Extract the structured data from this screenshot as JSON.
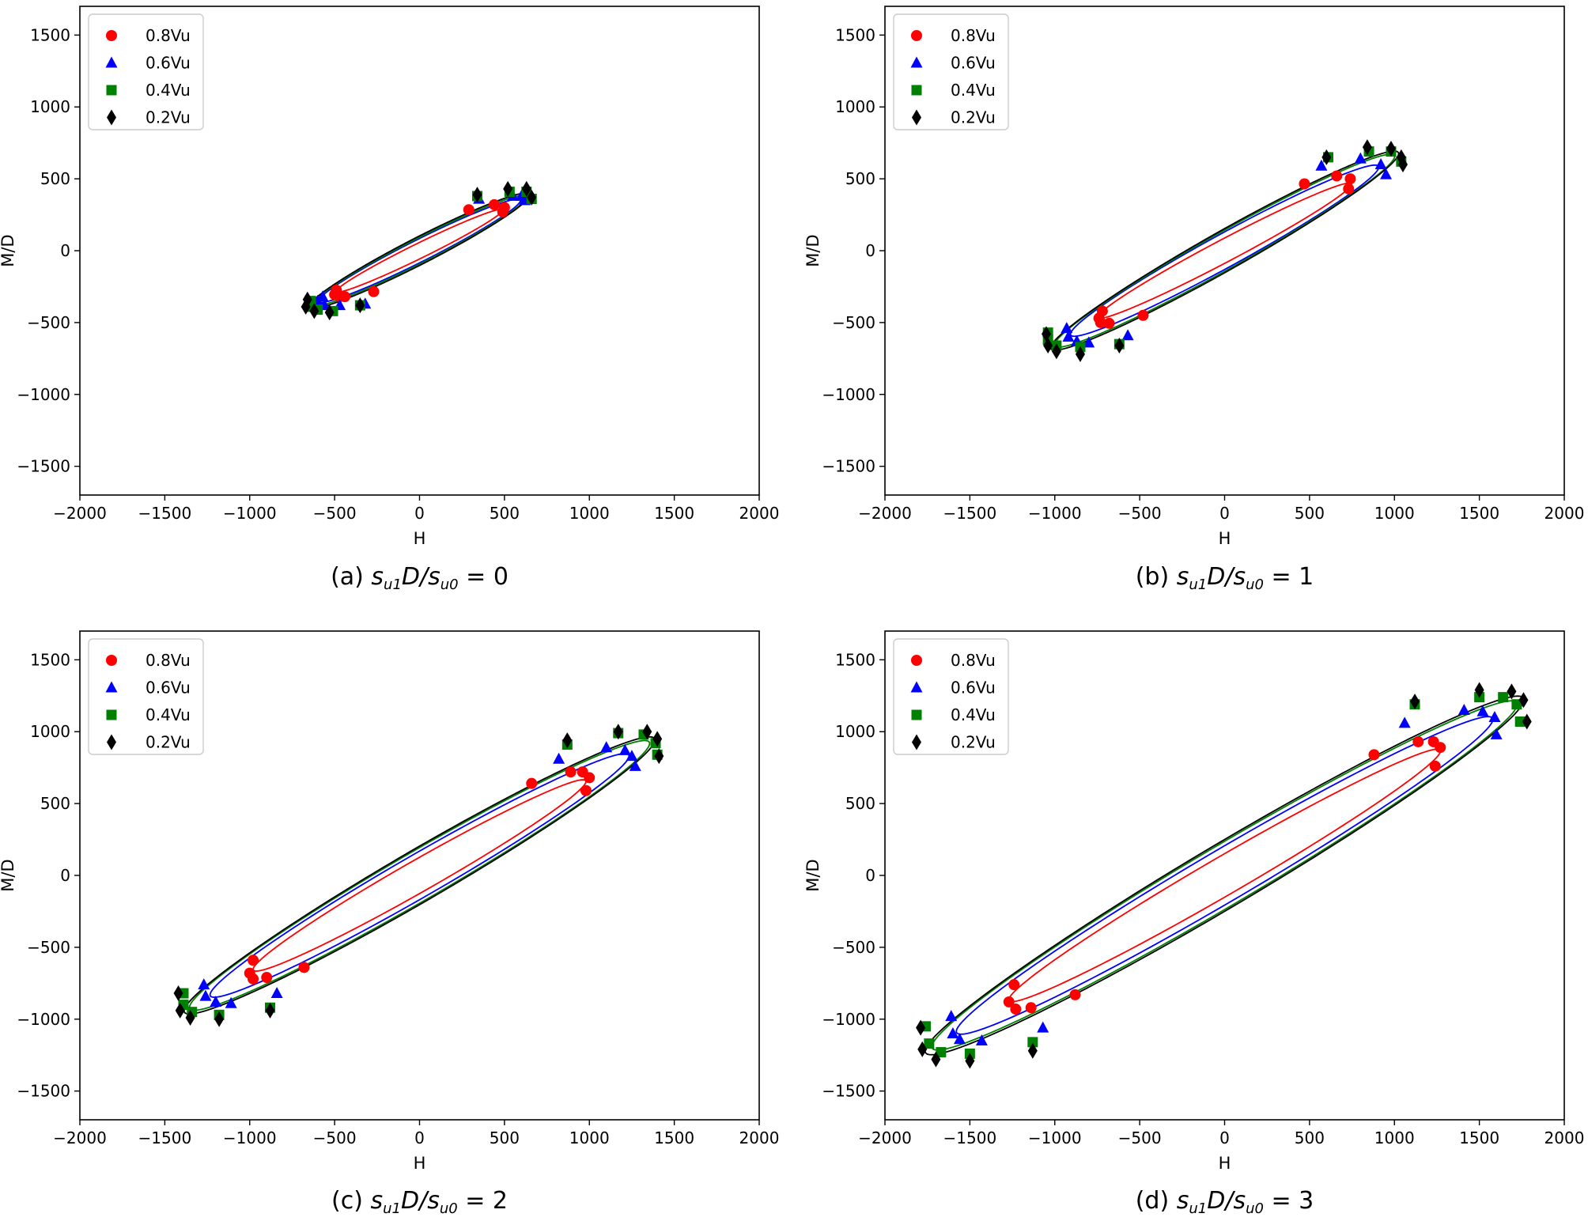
{
  "colors": {
    "0.8Vu": "#ff0000",
    "0.6Vu": "#0000ff",
    "0.4Vu": "#008000",
    "0.2Vu": "#000000",
    "axes": "#000000",
    "background": "#ffffff"
  },
  "legend_markers": {
    "0.8Vu": "circle",
    "0.6Vu": "triangle",
    "0.4Vu": "square",
    "0.2Vu": "diamond"
  },
  "chart_data": [
    {
      "type": "scatter",
      "caption": {
        "prefix": "(a)",
        "expression": "s_u1 D / s_u0",
        "rhs": "= 0"
      },
      "xlabel": "H",
      "ylabel": "M/D",
      "xlim": [
        -2000,
        2000
      ],
      "ylim": [
        -1700,
        1700
      ],
      "xticks": [
        -2000,
        -1500,
        -1000,
        -500,
        0,
        500,
        1000,
        1500,
        2000
      ],
      "yticks": [
        -1500,
        -1000,
        -500,
        0,
        500,
        1000,
        1500
      ],
      "xtick_labels": [
        "−2000",
        "−1500",
        "−1000",
        "−500",
        "0",
        "500",
        "1000",
        "1500",
        "2000"
      ],
      "ytick_labels": [
        "−1500",
        "−1000",
        "−500",
        "0",
        "500",
        "1000",
        "1500"
      ],
      "legend_position": "upper-left",
      "series": [
        {
          "name": "0.8Vu",
          "ellipse": {
            "cx": 0,
            "cy": 0,
            "a": 565,
            "b": 50,
            "angle_deg": 30.2
          },
          "points": [
            [
              -270,
              -285
            ],
            [
              -490,
              -275
            ],
            [
              -500,
              -305
            ],
            [
              -440,
              -320
            ],
            [
              -470,
              -320
            ],
            [
              290,
              285
            ],
            [
              440,
              320
            ],
            [
              500,
              300
            ],
            [
              490,
              270
            ]
          ]
        },
        {
          "name": "0.6Vu",
          "ellipse": {
            "cx": 0,
            "cy": 0,
            "a": 690,
            "b": 73,
            "angle_deg": 30.8
          },
          "points": [
            [
              -570,
              -320
            ],
            [
              -600,
              -350
            ],
            [
              -560,
              -380
            ],
            [
              -470,
              -380
            ],
            [
              -320,
              -370
            ],
            [
              350,
              360
            ],
            [
              550,
              380
            ],
            [
              600,
              380
            ],
            [
              620,
              350
            ]
          ]
        },
        {
          "name": "0.4Vu",
          "ellipse": {
            "cx": 0,
            "cy": 0,
            "a": 735,
            "b": 80,
            "angle_deg": 31.0
          },
          "points": [
            [
              -640,
              -350
            ],
            [
              -650,
              -390
            ],
            [
              -600,
              -410
            ],
            [
              -510,
              -420
            ],
            [
              -350,
              -380
            ],
            [
              340,
              380
            ],
            [
              530,
              410
            ],
            [
              630,
              410
            ],
            [
              660,
              360
            ]
          ]
        },
        {
          "name": "0.2Vu",
          "ellipse": {
            "cx": 0,
            "cy": 0,
            "a": 760,
            "b": 88,
            "angle_deg": 31.3
          },
          "points": [
            [
              -660,
              -340
            ],
            [
              -670,
              -390
            ],
            [
              -620,
              -420
            ],
            [
              -530,
              -430
            ],
            [
              -350,
              -380
            ],
            [
              340,
              390
            ],
            [
              520,
              430
            ],
            [
              630,
              430
            ],
            [
              660,
              370
            ]
          ]
        }
      ]
    },
    {
      "type": "scatter",
      "caption": {
        "prefix": "(b)",
        "expression": "s_u1 D / s_u0",
        "rhs": "= 1"
      },
      "xlabel": "H",
      "ylabel": "M/D",
      "xlim": [
        -2000,
        2000
      ],
      "ylim": [
        -1700,
        1700
      ],
      "xticks": [
        -2000,
        -1500,
        -1000,
        -500,
        0,
        500,
        1000,
        1500,
        2000
      ],
      "yticks": [
        -1500,
        -1000,
        -500,
        0,
        500,
        1000,
        1500
      ],
      "xtick_labels": [
        "−2000",
        "−1500",
        "−1000",
        "−500",
        "0",
        "500",
        "1000",
        "1500",
        "2000"
      ],
      "ytick_labels": [
        "−1500",
        "−1000",
        "−500",
        "0",
        "500",
        "1000",
        "1500"
      ],
      "legend_position": "upper-left",
      "series": [
        {
          "name": "0.8Vu",
          "ellipse": {
            "cx": 0,
            "cy": 0,
            "a": 880,
            "b": 75,
            "angle_deg": 32.0
          },
          "points": [
            [
              -480,
              -450
            ],
            [
              -680,
              -505
            ],
            [
              -730,
              -500
            ],
            [
              -740,
              -470
            ],
            [
              -720,
              -420
            ],
            [
              470,
              465
            ],
            [
              660,
              520
            ],
            [
              740,
              500
            ],
            [
              730,
              430
            ]
          ]
        },
        {
          "name": "0.6Vu",
          "ellipse": {
            "cx": 0,
            "cy": 0,
            "a": 1080,
            "b": 110,
            "angle_deg": 33.0
          },
          "points": [
            [
              -570,
              -590
            ],
            [
              -800,
              -640
            ],
            [
              -870,
              -630
            ],
            [
              -920,
              -600
            ],
            [
              -930,
              -540
            ],
            [
              570,
              590
            ],
            [
              800,
              640
            ],
            [
              920,
              600
            ],
            [
              950,
              530
            ]
          ]
        },
        {
          "name": "0.4Vu",
          "ellipse": {
            "cx": 0,
            "cy": 0,
            "a": 1200,
            "b": 120,
            "angle_deg": 33.6
          },
          "points": [
            [
              -1040,
              -570
            ],
            [
              -1040,
              -620
            ],
            [
              -990,
              -660
            ],
            [
              -850,
              -670
            ],
            [
              -620,
              -650
            ],
            [
              610,
              650
            ],
            [
              850,
              690
            ],
            [
              980,
              690
            ],
            [
              1040,
              620
            ]
          ]
        },
        {
          "name": "0.2Vu",
          "ellipse": {
            "cx": 0,
            "cy": 0,
            "a": 1230,
            "b": 128,
            "angle_deg": 33.8
          },
          "points": [
            [
              -1050,
              -580
            ],
            [
              -1040,
              -660
            ],
            [
              -990,
              -700
            ],
            [
              -850,
              -720
            ],
            [
              -620,
              -660
            ],
            [
              600,
              650
            ],
            [
              840,
              720
            ],
            [
              980,
              710
            ],
            [
              1040,
              650
            ],
            [
              1050,
              600
            ]
          ]
        }
      ]
    },
    {
      "type": "scatter",
      "caption": {
        "prefix": "(c)",
        "expression": "s_u1 D / s_u0",
        "rhs": "= 2"
      },
      "xlabel": "H",
      "ylabel": "M/D",
      "xlim": [
        -2000,
        2000
      ],
      "ylim": [
        -1700,
        1700
      ],
      "xticks": [
        -2000,
        -1500,
        -1000,
        -500,
        0,
        500,
        1000,
        1500,
        2000
      ],
      "yticks": [
        -1500,
        -1000,
        -500,
        0,
        500,
        1000,
        1500
      ],
      "xtick_labels": [
        "−2000",
        "−1500",
        "−1000",
        "−500",
        "0",
        "500",
        "1000",
        "1500",
        "2000"
      ],
      "ytick_labels": [
        "−1500",
        "−1000",
        "−500",
        "0",
        "500",
        "1000",
        "1500"
      ],
      "legend_position": "upper-left",
      "series": [
        {
          "name": "0.8Vu",
          "ellipse": {
            "cx": 0,
            "cy": 0,
            "a": 1180,
            "b": 105,
            "angle_deg": 34.0
          },
          "points": [
            [
              -680,
              -640
            ],
            [
              -900,
              -710
            ],
            [
              -980,
              -720
            ],
            [
              -1000,
              -680
            ],
            [
              -980,
              -590
            ],
            [
              660,
              640
            ],
            [
              890,
              720
            ],
            [
              960,
              720
            ],
            [
              1000,
              680
            ],
            [
              980,
              590
            ]
          ]
        },
        {
          "name": "0.6Vu",
          "ellipse": {
            "cx": 0,
            "cy": 0,
            "a": 1490,
            "b": 140,
            "angle_deg": 34.3
          },
          "points": [
            [
              -840,
              -820
            ],
            [
              -1110,
              -890
            ],
            [
              -1200,
              -880
            ],
            [
              -1260,
              -840
            ],
            [
              -1270,
              -760
            ],
            [
              820,
              810
            ],
            [
              1100,
              890
            ],
            [
              1210,
              870
            ],
            [
              1250,
              830
            ],
            [
              1270,
              760
            ]
          ]
        },
        {
          "name": "0.4Vu",
          "ellipse": {
            "cx": 0,
            "cy": 0,
            "a": 1640,
            "b": 160,
            "angle_deg": 34.5
          },
          "points": [
            [
              -1390,
              -820
            ],
            [
              -1390,
              -900
            ],
            [
              -1340,
              -950
            ],
            [
              -1180,
              -970
            ],
            [
              -880,
              -920
            ],
            [
              870,
              910
            ],
            [
              1170,
              990
            ],
            [
              1320,
              980
            ],
            [
              1390,
              920
            ],
            [
              1400,
              840
            ]
          ]
        },
        {
          "name": "0.2Vu",
          "ellipse": {
            "cx": 0,
            "cy": 0,
            "a": 1680,
            "b": 168,
            "angle_deg": 34.6
          },
          "points": [
            [
              -1420,
              -820
            ],
            [
              -1410,
              -940
            ],
            [
              -1350,
              -990
            ],
            [
              -1180,
              -1000
            ],
            [
              -880,
              -940
            ],
            [
              870,
              940
            ],
            [
              1170,
              1000
            ],
            [
              1340,
              1000
            ],
            [
              1400,
              950
            ],
            [
              1410,
              830
            ]
          ]
        }
      ]
    },
    {
      "type": "scatter",
      "caption": {
        "prefix": "(d)",
        "expression": "s_u1 D / s_u0",
        "rhs": "= 3"
      },
      "xlabel": "H",
      "ylabel": "M/D",
      "xlim": [
        -2000,
        2000
      ],
      "ylim": [
        -1700,
        1700
      ],
      "xticks": [
        -2000,
        -1500,
        -1000,
        -500,
        0,
        500,
        1000,
        1500,
        2000
      ],
      "yticks": [
        -1500,
        -1000,
        -500,
        0,
        500,
        1000,
        1500
      ],
      "xtick_labels": [
        "−2000",
        "−1500",
        "−1000",
        "−500",
        "0",
        "500",
        "1000",
        "1500",
        "2000"
      ],
      "ytick_labels": [
        "−1500",
        "−1000",
        "−500",
        "0",
        "500",
        "1000",
        "1500"
      ],
      "legend_position": "upper-left",
      "series": [
        {
          "name": "0.8Vu",
          "ellipse": {
            "cx": 0,
            "cy": 0,
            "a": 1540,
            "b": 125,
            "angle_deg": 34.5
          },
          "points": [
            [
              -880,
              -830
            ],
            [
              -1140,
              -920
            ],
            [
              -1230,
              -930
            ],
            [
              -1270,
              -880
            ],
            [
              -1240,
              -760
            ],
            [
              880,
              840
            ],
            [
              1140,
              930
            ],
            [
              1230,
              930
            ],
            [
              1270,
              890
            ],
            [
              1240,
              760
            ]
          ]
        },
        {
          "name": "0.6Vu",
          "ellipse": {
            "cx": 0,
            "cy": 0,
            "a": 1920,
            "b": 170,
            "angle_deg": 34.8
          },
          "points": [
            [
              -1070,
              -1060
            ],
            [
              -1430,
              -1150
            ],
            [
              -1560,
              -1140
            ],
            [
              -1600,
              -1100
            ],
            [
              -1610,
              -980
            ],
            [
              1060,
              1060
            ],
            [
              1410,
              1150
            ],
            [
              1520,
              1140
            ],
            [
              1590,
              1100
            ],
            [
              1600,
              980
            ]
          ]
        },
        {
          "name": "0.4Vu",
          "ellipse": {
            "cx": 0,
            "cy": 0,
            "a": 2100,
            "b": 195,
            "angle_deg": 35.0
          },
          "points": [
            [
              -1130,
              -1160
            ],
            [
              -1500,
              -1240
            ],
            [
              -1670,
              -1230
            ],
            [
              -1740,
              -1170
            ],
            [
              -1760,
              -1050
            ],
            [
              1120,
              1190
            ],
            [
              1500,
              1240
            ],
            [
              1640,
              1240
            ],
            [
              1720,
              1190
            ],
            [
              1740,
              1070
            ]
          ]
        },
        {
          "name": "0.2Vu",
          "ellipse": {
            "cx": 0,
            "cy": 0,
            "a": 2150,
            "b": 205,
            "angle_deg": 35.1
          },
          "points": [
            [
              -1130,
              -1220
            ],
            [
              -1500,
              -1290
            ],
            [
              -1700,
              -1280
            ],
            [
              -1780,
              -1210
            ],
            [
              -1790,
              -1060
            ],
            [
              1120,
              1210
            ],
            [
              1500,
              1290
            ],
            [
              1690,
              1280
            ],
            [
              1760,
              1220
            ],
            [
              1780,
              1070
            ]
          ]
        }
      ]
    }
  ]
}
